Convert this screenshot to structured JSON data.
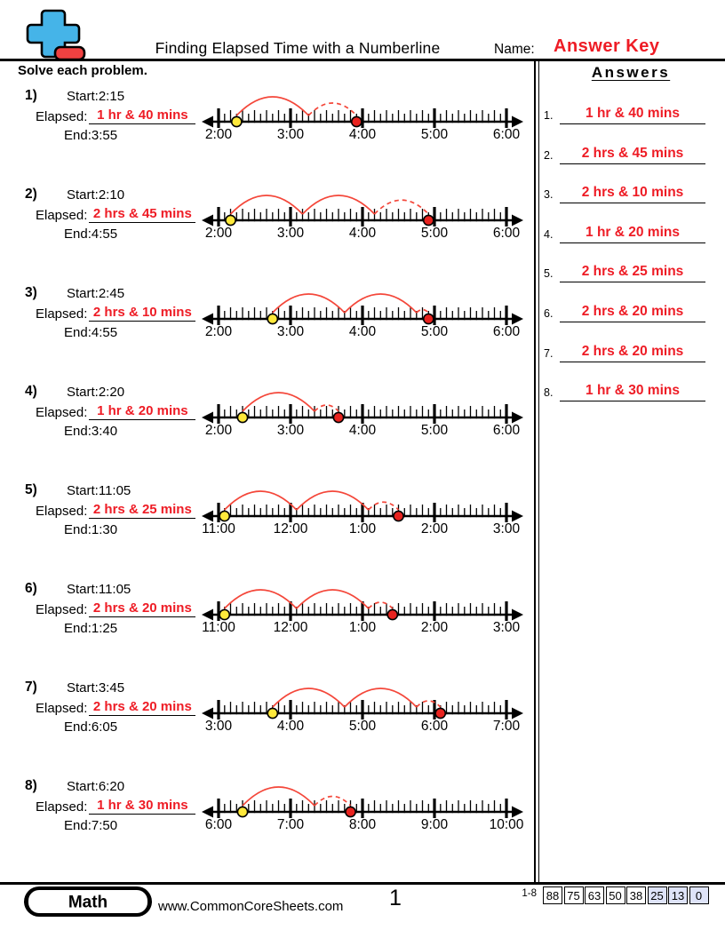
{
  "header": {
    "title": "Finding Elapsed Time with a Numberline",
    "name_label": "Name:",
    "answer_key": "Answer Key",
    "instruction": "Solve each problem."
  },
  "labels": {
    "start": "Start:",
    "elapsed": "Elapsed:",
    "end": "End:"
  },
  "colors": {
    "text_red": "#ee1c25",
    "arc_red": "#f4473a",
    "dot_red": "#e8231f",
    "dot_yellow": "#ffe93b",
    "logo_blue": "#45b4e8",
    "logo_red": "#f04141",
    "score_highlight": "#dee3f8"
  },
  "problems": [
    {
      "num": "1)",
      "start": "2:15",
      "elapsed": "1 hr & 40 mins",
      "end": "3:55",
      "line": {
        "labels": [
          "2:00",
          "3:00",
          "4:00",
          "5:00",
          "6:00"
        ],
        "start_h": 0.25,
        "end_h": 1.9167
      }
    },
    {
      "num": "2)",
      "start": "2:10",
      "elapsed": "2 hrs & 45 mins",
      "end": "4:55",
      "line": {
        "labels": [
          "2:00",
          "3:00",
          "4:00",
          "5:00",
          "6:00"
        ],
        "start_h": 0.1667,
        "end_h": 2.9167
      }
    },
    {
      "num": "3)",
      "start": "2:45",
      "elapsed": "2 hrs & 10 mins",
      "end": "4:55",
      "line": {
        "labels": [
          "2:00",
          "3:00",
          "4:00",
          "5:00",
          "6:00"
        ],
        "start_h": 0.75,
        "end_h": 2.9167
      }
    },
    {
      "num": "4)",
      "start": "2:20",
      "elapsed": "1 hr & 20 mins",
      "end": "3:40",
      "line": {
        "labels": [
          "2:00",
          "3:00",
          "4:00",
          "5:00",
          "6:00"
        ],
        "start_h": 0.3333,
        "end_h": 1.6667
      }
    },
    {
      "num": "5)",
      "start": "11:05",
      "elapsed": "2 hrs & 25 mins",
      "end": "1:30",
      "line": {
        "labels": [
          "11:00",
          "12:00",
          "1:00",
          "2:00",
          "3:00"
        ],
        "start_h": 0.0833,
        "end_h": 2.5
      }
    },
    {
      "num": "6)",
      "start": "11:05",
      "elapsed": "2 hrs & 20 mins",
      "end": "1:25",
      "line": {
        "labels": [
          "11:00",
          "12:00",
          "1:00",
          "2:00",
          "3:00"
        ],
        "start_h": 0.0833,
        "end_h": 2.4167
      }
    },
    {
      "num": "7)",
      "start": "3:45",
      "elapsed": "2 hrs & 20 mins",
      "end": "6:05",
      "line": {
        "labels": [
          "3:00",
          "4:00",
          "5:00",
          "6:00",
          "7:00"
        ],
        "start_h": 0.75,
        "end_h": 3.0833
      }
    },
    {
      "num": "8)",
      "start": "6:20",
      "elapsed": "1 hr & 30 mins",
      "end": "7:50",
      "line": {
        "labels": [
          "6:00",
          "7:00",
          "8:00",
          "9:00",
          "10:00"
        ],
        "start_h": 0.3333,
        "end_h": 1.8333
      }
    }
  ],
  "answers": {
    "heading": "Answers",
    "items": [
      {
        "num": "1.",
        "text": "1 hr & 40 mins"
      },
      {
        "num": "2.",
        "text": "2 hrs & 45 mins"
      },
      {
        "num": "3.",
        "text": "2 hrs & 10 mins"
      },
      {
        "num": "4.",
        "text": "1 hr & 20 mins"
      },
      {
        "num": "5.",
        "text": "2 hrs & 25 mins"
      },
      {
        "num": "6.",
        "text": "2 hrs & 20 mins"
      },
      {
        "num": "7.",
        "text": "2 hrs & 20 mins"
      },
      {
        "num": "8.",
        "text": "1 hr & 30 mins"
      }
    ]
  },
  "footer": {
    "badge": "Math",
    "website": "www.CommonCoreSheets.com",
    "page": "1",
    "range": "1-8",
    "scores": [
      "88",
      "75",
      "63",
      "50",
      "38",
      "25",
      "13",
      "0"
    ],
    "highlight_from_index": 5
  }
}
